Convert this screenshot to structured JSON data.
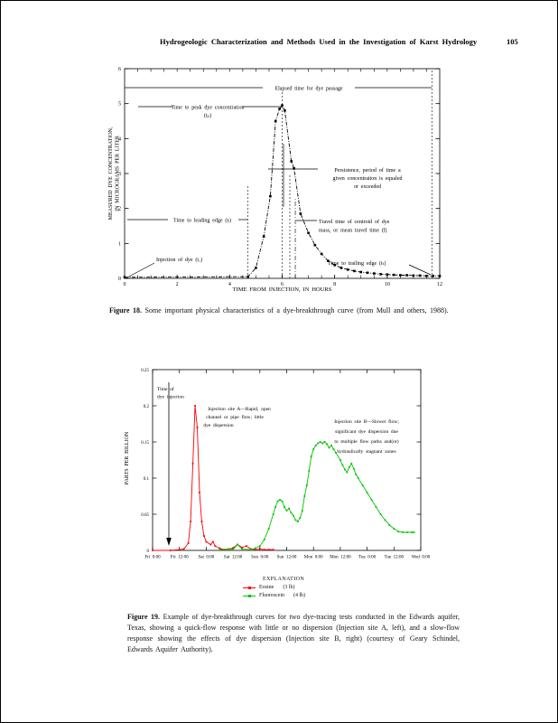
{
  "page": {
    "header_title": "Hydrogeologic Characterization and Methods Used in the Investigation of Karst Hydrology",
    "page_number": "105"
  },
  "figure18": {
    "caption_label": "Figure 18.",
    "caption_text": "Some important physical characteristics of a dye-breakthrough curve (from Mull and others, 1988)."
  },
  "figure19": {
    "caption_label": "Figure 19.",
    "caption_text": "Example of dye-breakthrough curves for two dye-tracing tests conducted in the Edwards aquifer, Texas, showing a quick-flow response with little or no dispersion (Injection site A, left), and a slow-flow response showing the effects of dye dispersion (Injection site B, right) (courtesy of Geary Schindel, Edwards Aquifer Authority)."
  },
  "chart_data": [
    {
      "type": "line",
      "xlabel": "TIME FROM INJECTION, IN HOURS",
      "ylabel": "MEASURED DYE CONCENTRATION, IN MICROGRAMS PER LITER",
      "ylabel_lines": [
        "MEASURED DYE CONCENTRATION,",
        "IN MICROGRAMS PER LITER"
      ],
      "xlim": [
        0,
        12
      ],
      "ylim": [
        0,
        6
      ],
      "xticks": [
        0,
        2,
        4,
        6,
        8,
        10,
        12
      ],
      "yticks": [
        0,
        1,
        2,
        3,
        4,
        5,
        6
      ],
      "x_minor_step": 0.5,
      "grid": false,
      "series": [
        {
          "name": "dye-breakthrough curve",
          "color": "#000000",
          "marker": "square",
          "line_style": "dash-dot",
          "points": [
            [
              0,
              0.03
            ],
            [
              4.7,
              0.05
            ],
            [
              5.0,
              0.3
            ],
            [
              5.3,
              1.2
            ],
            [
              5.55,
              2.35
            ],
            [
              5.75,
              4.5
            ],
            [
              5.9,
              4.85
            ],
            [
              6.0,
              4.95
            ],
            [
              6.1,
              4.8
            ],
            [
              6.35,
              3.35
            ],
            [
              6.45,
              3.15
            ],
            [
              6.7,
              1.85
            ],
            [
              7.0,
              1.3
            ],
            [
              7.25,
              0.95
            ],
            [
              7.5,
              0.7
            ],
            [
              7.75,
              0.5
            ],
            [
              8.0,
              0.38
            ],
            [
              8.25,
              0.3
            ],
            [
              8.5,
              0.25
            ],
            [
              8.75,
              0.21
            ],
            [
              9.0,
              0.18
            ],
            [
              9.25,
              0.16
            ],
            [
              9.5,
              0.14
            ],
            [
              9.75,
              0.12
            ],
            [
              10.0,
              0.11
            ],
            [
              10.25,
              0.1
            ],
            [
              10.5,
              0.09
            ],
            [
              10.75,
              0.09
            ],
            [
              11.0,
              0.08
            ],
            [
              11.25,
              0.08
            ],
            [
              11.5,
              0.07
            ],
            [
              11.75,
              0.07
            ],
            [
              12.0,
              0.07
            ]
          ]
        }
      ],
      "reference_lines_hours": {
        "injection": 0,
        "leading_edge": 4.7,
        "peak": 6.0,
        "centroid": 6.5,
        "trailing_edge": 11.7
      },
      "annotations": {
        "elapsed": "Elapsed time for dye passage",
        "peak": [
          "Time to peak dye concentration",
          "(tₚ)"
        ],
        "persistence": [
          "Persistence, period of time a",
          "given concentration is equaled",
          "or exceeded"
        ],
        "leading": "Time to leading edge  (tₗ)",
        "injection": "Injection of dye  (t₁)",
        "centroid": [
          "Travel time of centroid of dye",
          "mass, or mean travel time (t̄)"
        ],
        "trailing": "Time to trailing edge  (tₜ)"
      }
    },
    {
      "type": "line",
      "ylabel": "PARTS PER BILLION",
      "xtick_labels": [
        "Fri 0:00",
        "Fri 12:00",
        "Sat 0:00",
        "Sat 12:00",
        "Sun 0:00",
        "Sun 12:00",
        "Mon 0:00",
        "Mon 12:00",
        "Tue 0:00",
        "Tue 12:00",
        "Wed 0:00"
      ],
      "x_hours_range": [
        0,
        120
      ],
      "ylim": [
        0,
        0.25
      ],
      "yticks": [
        0,
        0.05,
        0.1,
        0.15,
        0.2,
        0.25
      ],
      "grid": false,
      "legend_title": "EXPLANATION",
      "series": [
        {
          "name": "Eosine",
          "amount": "(3 lb)",
          "color": "#ff0000",
          "points": [
            [
              0,
              0
            ],
            [
              8,
              0
            ],
            [
              12,
              0.001
            ],
            [
              14,
              0.002
            ],
            [
              16,
              0.01
            ],
            [
              17,
              0.04
            ],
            [
              18,
              0.12
            ],
            [
              19,
              0.2
            ],
            [
              20,
              0.17
            ],
            [
              21,
              0.08
            ],
            [
              22,
              0.04
            ],
            [
              23,
              0.02
            ],
            [
              24,
              0.012
            ],
            [
              26,
              0.008
            ],
            [
              27,
              0.012
            ],
            [
              28,
              0.006
            ],
            [
              30,
              0.003
            ],
            [
              32,
              0.001
            ],
            [
              34,
              0.002
            ],
            [
              36,
              0.003
            ],
            [
              38,
              0.008
            ],
            [
              40,
              0.004
            ],
            [
              42,
              0.006
            ],
            [
              44,
              0.002
            ],
            [
              46,
              0.001
            ],
            [
              48,
              0.002
            ],
            [
              50,
              0.001
            ],
            [
              52,
              0.001
            ],
            [
              54,
              0.001
            ]
          ]
        },
        {
          "name": "Fluorescein",
          "amount": "(4 lb)",
          "color": "#00c400",
          "points": [
            [
              30,
              0.001
            ],
            [
              34,
              0.002
            ],
            [
              36,
              0.001
            ],
            [
              38,
              0.008
            ],
            [
              40,
              0.002
            ],
            [
              44,
              0.001
            ],
            [
              46,
              0.003
            ],
            [
              48,
              0.006
            ],
            [
              50,
              0.015
            ],
            [
              52,
              0.03
            ],
            [
              54,
              0.05
            ],
            [
              55,
              0.06
            ],
            [
              56,
              0.068
            ],
            [
              57,
              0.07
            ],
            [
              58,
              0.068
            ],
            [
              59,
              0.06
            ],
            [
              60,
              0.055
            ],
            [
              61,
              0.058
            ],
            [
              62,
              0.052
            ],
            [
              63,
              0.048
            ],
            [
              64,
              0.042
            ],
            [
              65,
              0.04
            ],
            [
              66,
              0.045
            ],
            [
              67,
              0.055
            ],
            [
              68,
              0.075
            ],
            [
              69,
              0.09
            ],
            [
              70,
              0.11
            ],
            [
              71,
              0.13
            ],
            [
              72,
              0.14
            ],
            [
              73,
              0.145
            ],
            [
              74,
              0.148
            ],
            [
              75,
              0.15
            ],
            [
              76,
              0.148
            ],
            [
              77,
              0.15
            ],
            [
              78,
              0.147
            ],
            [
              79,
              0.142
            ],
            [
              80,
              0.145
            ],
            [
              81,
              0.14
            ],
            [
              82,
              0.135
            ],
            [
              84,
              0.125
            ],
            [
              85,
              0.118
            ],
            [
              86,
              0.112
            ],
            [
              87,
              0.108
            ],
            [
              88,
              0.115
            ],
            [
              89,
              0.12
            ],
            [
              90,
              0.113
            ],
            [
              91,
              0.105
            ],
            [
              92,
              0.1
            ],
            [
              94,
              0.09
            ],
            [
              96,
              0.08
            ],
            [
              98,
              0.07
            ],
            [
              100,
              0.06
            ],
            [
              102,
              0.05
            ],
            [
              104,
              0.042
            ],
            [
              106,
              0.035
            ],
            [
              108,
              0.03
            ],
            [
              110,
              0.026
            ],
            [
              112,
              0.025
            ],
            [
              114,
              0.025
            ],
            [
              116,
              0.025
            ],
            [
              117,
              0.025
            ]
          ]
        }
      ],
      "annotations": {
        "injection": [
          "Time of",
          "dye injection"
        ],
        "site_a": [
          "Injection site A—Rapid, open",
          "channel or pipe flow; little",
          "dye dispersion"
        ],
        "site_b": [
          "Injection site B—Slower flow;",
          "significant dye dispersion due",
          "to multiple flow paths and(or)",
          "hydraulically stagnant zones"
        ]
      }
    }
  ]
}
